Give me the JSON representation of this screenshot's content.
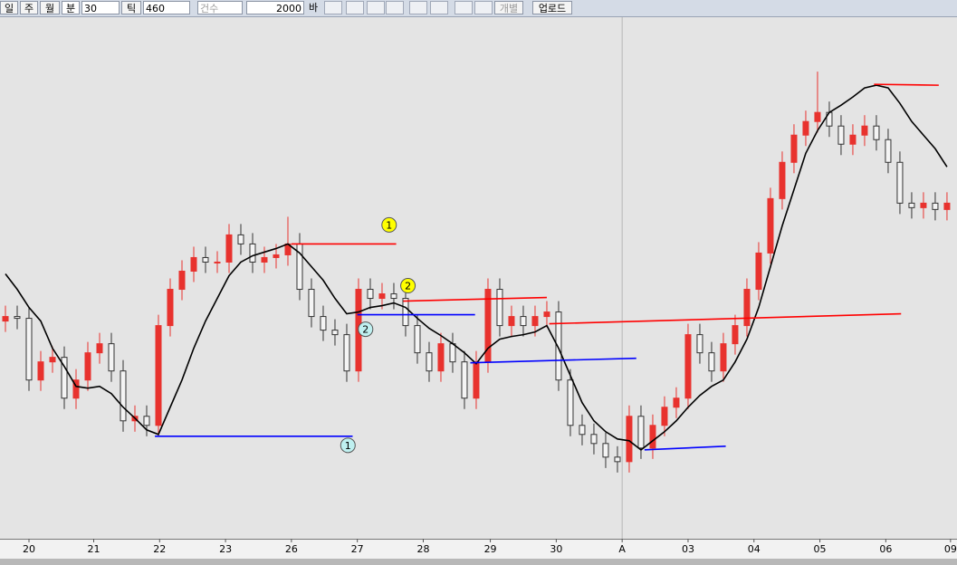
{
  "toolbar": {
    "day": "일",
    "week": "주",
    "month": "월",
    "minute": "분",
    "period": "30",
    "tick": "틱",
    "tick_count": "460",
    "count": "건수",
    "bars": "2000",
    "bar_unit": "바",
    "individual": "개별",
    "upload": "업로드"
  },
  "chart_data": {
    "type": "candlestick",
    "xlim": [
      -0.4615,
      80.85
    ],
    "ylim": [
      0,
      575
    ],
    "up_color": "#e8322e",
    "down_color": "#333333",
    "xticks": [
      {
        "value": 2,
        "label": "20"
      },
      {
        "value": 7.5,
        "label": "21"
      },
      {
        "value": 13.1,
        "label": "22"
      },
      {
        "value": 18.7,
        "label": "23"
      },
      {
        "value": 24.3,
        "label": "26"
      },
      {
        "value": 29.9,
        "label": "27"
      },
      {
        "value": 35.5,
        "label": "28"
      },
      {
        "value": 41.2,
        "label": "29"
      },
      {
        "value": 46.8,
        "label": "30"
      },
      {
        "value": 52.4,
        "label": "A"
      },
      {
        "value": 58,
        "label": "03"
      },
      {
        "value": 63.6,
        "label": "04"
      },
      {
        "value": 69.2,
        "label": "05"
      },
      {
        "value": 74.8,
        "label": "06"
      },
      {
        "value": 80.3,
        "label": "09"
      }
    ],
    "open": [
      240,
      245,
      243,
      175,
      195,
      200,
      155,
      175,
      205,
      215,
      185,
      130,
      135,
      125,
      235,
      275,
      295,
      310,
      305,
      305,
      335,
      325,
      305,
      310,
      313,
      325,
      275,
      245,
      230,
      225,
      185,
      275,
      265,
      270,
      265,
      235,
      205,
      185,
      215,
      195,
      155,
      195,
      275,
      235,
      245,
      235,
      245,
      250,
      175,
      125,
      115,
      105,
      90,
      85,
      135,
      100,
      125,
      145,
      155,
      225,
      205,
      185,
      215,
      235,
      275,
      315,
      375,
      415,
      445,
      460,
      470,
      455,
      435,
      445,
      455,
      440,
      415,
      370,
      365,
      370,
      363
    ],
    "high": [
      257,
      257,
      255,
      207,
      212,
      212,
      187,
      217,
      227,
      227,
      197,
      147,
      147,
      247,
      287,
      307,
      322,
      322,
      317,
      347,
      347,
      337,
      322,
      325,
      355,
      337,
      287,
      257,
      242,
      237,
      287,
      287,
      282,
      282,
      277,
      247,
      217,
      227,
      227,
      207,
      207,
      287,
      287,
      257,
      257,
      257,
      262,
      262,
      187,
      137,
      127,
      117,
      102,
      147,
      147,
      137,
      157,
      167,
      237,
      237,
      217,
      227,
      247,
      287,
      327,
      387,
      427,
      457,
      472,
      515,
      482,
      467,
      457,
      467,
      467,
      452,
      427,
      382,
      382,
      382,
      382
    ],
    "low": [
      228,
      231,
      163,
      163,
      183,
      143,
      143,
      163,
      193,
      173,
      118,
      118,
      113,
      113,
      223,
      263,
      283,
      293,
      293,
      293,
      313,
      293,
      293,
      298,
      301,
      263,
      233,
      218,
      213,
      173,
      173,
      253,
      253,
      253,
      223,
      193,
      173,
      173,
      183,
      143,
      143,
      183,
      223,
      223,
      223,
      223,
      233,
      163,
      113,
      103,
      93,
      78,
      73,
      73,
      88,
      88,
      113,
      133,
      143,
      193,
      173,
      173,
      203,
      223,
      263,
      303,
      363,
      403,
      433,
      448,
      443,
      423,
      423,
      433,
      428,
      403,
      358,
      353,
      353,
      351,
      351
    ],
    "close": [
      245,
      243,
      175,
      195,
      200,
      155,
      175,
      205,
      215,
      185,
      130,
      135,
      125,
      235,
      275,
      295,
      310,
      305,
      305,
      335,
      325,
      305,
      310,
      313,
      325,
      275,
      245,
      230,
      225,
      185,
      275,
      265,
      270,
      265,
      235,
      205,
      185,
      215,
      195,
      155,
      195,
      275,
      235,
      245,
      235,
      245,
      250,
      175,
      125,
      115,
      105,
      90,
      85,
      135,
      100,
      125,
      145,
      155,
      225,
      205,
      185,
      215,
      235,
      275,
      315,
      375,
      415,
      445,
      460,
      470,
      455,
      435,
      445,
      455,
      440,
      415,
      370,
      365,
      370,
      363,
      370
    ],
    "average": {
      "color": "#000000",
      "values": [
        292,
        275,
        255,
        240,
        210,
        190,
        168,
        166,
        168,
        160,
        145,
        133,
        120,
        115,
        145,
        175,
        210,
        240,
        265,
        290,
        305,
        312,
        316,
        320,
        325,
        315,
        300,
        285,
        265,
        248,
        250,
        255,
        257,
        260,
        255,
        243,
        232,
        224,
        215,
        205,
        193,
        210,
        220,
        223,
        225,
        228,
        235,
        210,
        180,
        150,
        130,
        118,
        110,
        108,
        98,
        108,
        118,
        130,
        145,
        158,
        168,
        175,
        195,
        220,
        255,
        300,
        345,
        385,
        425,
        450,
        470,
        478,
        487,
        497,
        500,
        497,
        480,
        460,
        445,
        430,
        410
      ]
    },
    "lines": [
      {
        "color": "#ff0000",
        "x": [
          24.3,
          33.2
        ],
        "values": [
          325,
          325
        ]
      },
      {
        "color": "#0000ff",
        "x": [
          12.7,
          29.5
        ],
        "values": [
          113,
          113
        ]
      },
      {
        "color": "#0000ff",
        "x": [
          29.9,
          39.9
        ],
        "values": [
          247,
          247
        ]
      },
      {
        "color": "#ff0000",
        "x": [
          33.8,
          46
        ],
        "values": [
          262,
          266
        ]
      },
      {
        "color": "#0000ff",
        "x": [
          39.5,
          53.6
        ],
        "values": [
          194,
          199
        ]
      },
      {
        "color": "#ff0000",
        "x": [
          46.2,
          76.1
        ],
        "values": [
          237,
          248
        ]
      },
      {
        "color": "#0000ff",
        "x": [
          54.3,
          61.2
        ],
        "values": [
          98,
          102
        ]
      },
      {
        "color": "#ff0000",
        "x": [
          73.8,
          79.3
        ],
        "values": [
          501,
          500
        ]
      }
    ],
    "markers": [
      {
        "label": "1",
        "color": "#ffff00",
        "x": 32.6,
        "value": 346
      },
      {
        "label": "2",
        "color": "#ffff00",
        "x": 34.2,
        "value": 279
      },
      {
        "label": "2",
        "color": "#bff0f0",
        "x": 30.6,
        "value": 231
      },
      {
        "label": "1",
        "color": "#bff0f0",
        "x": 29.1,
        "value": 103
      }
    ]
  }
}
